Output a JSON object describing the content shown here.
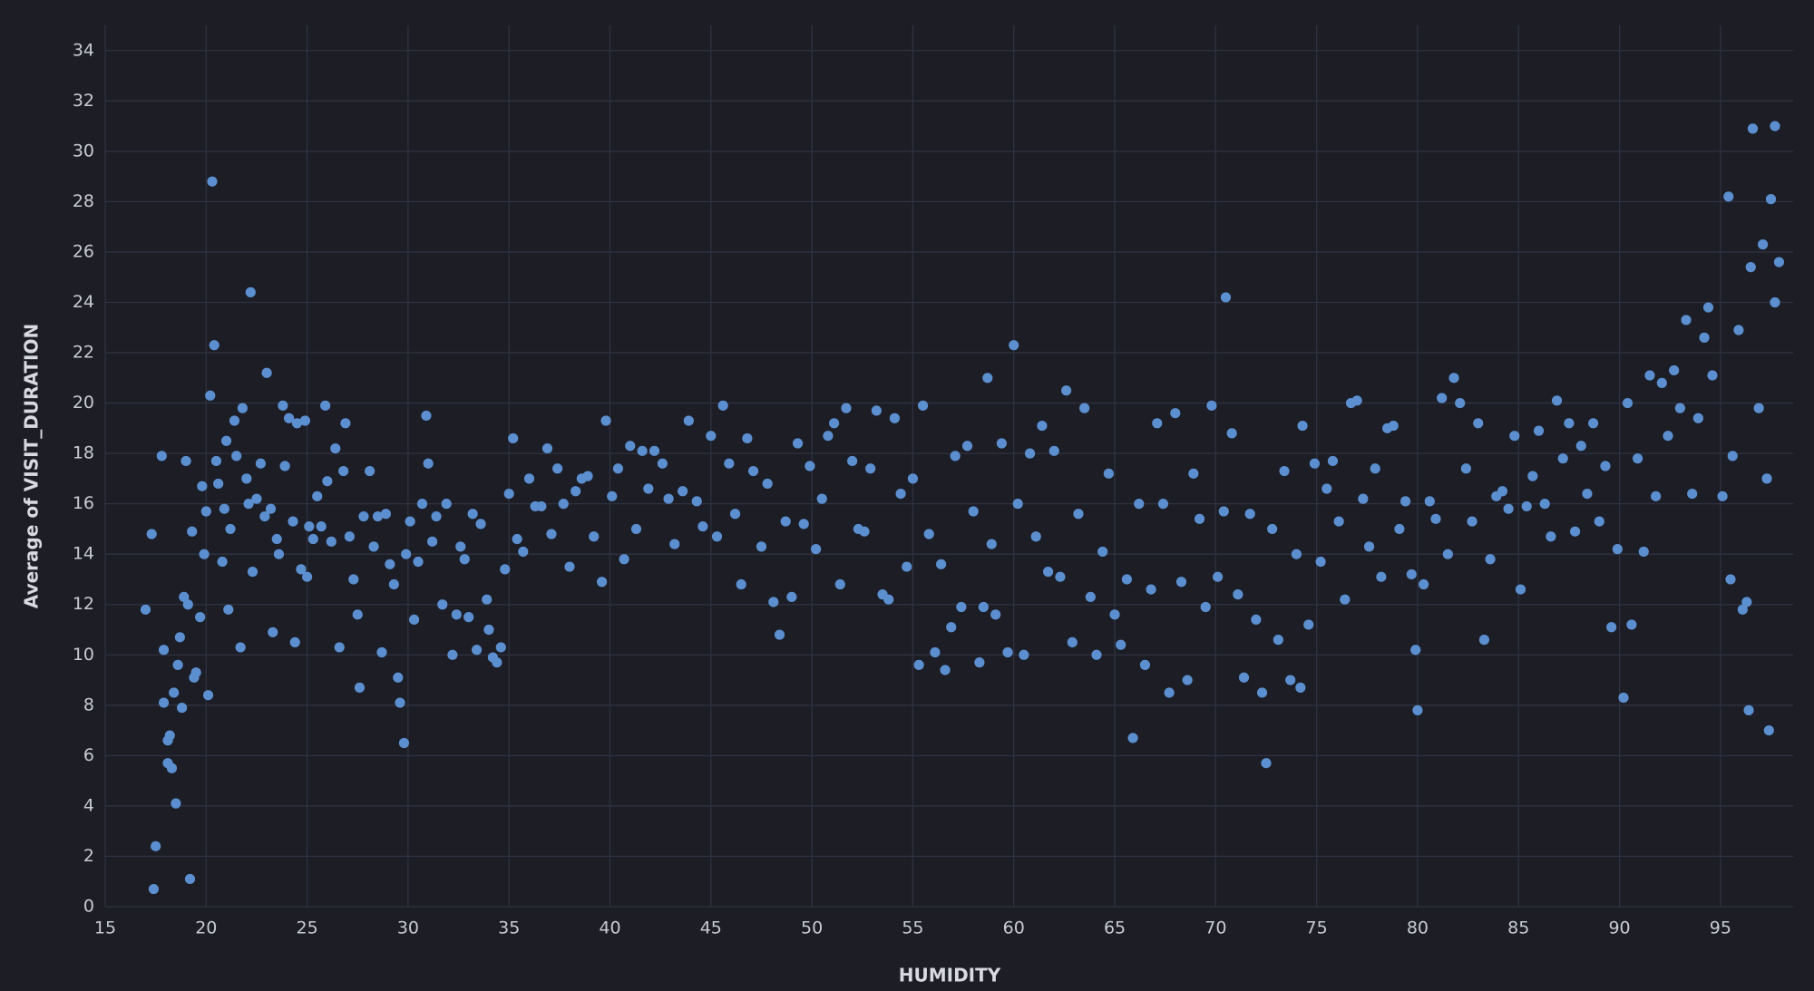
{
  "chart_data": {
    "type": "scatter",
    "x_label": "HUMIDITY",
    "y_label": "Average of VISIT_DURATION",
    "color": "#5b8fd0",
    "grid": true,
    "xlim": [
      15,
      98.6
    ],
    "ylim": [
      0,
      35
    ],
    "xticks": [
      15,
      20,
      25,
      30,
      35,
      40,
      45,
      50,
      55,
      60,
      65,
      70,
      75,
      80,
      85,
      90,
      95
    ],
    "yticks": [
      0,
      2,
      4,
      6,
      8,
      10,
      12,
      14,
      16,
      18,
      20,
      22,
      24,
      26,
      28,
      30,
      32,
      34
    ],
    "x": [
      17,
      17.3,
      17.4,
      17.5,
      17.8,
      17.9,
      17.9,
      18.1,
      18.2,
      18.1,
      18.3,
      18.4,
      18.5,
      18.6,
      18.7,
      18.8,
      18.9,
      19,
      19.1,
      19.2,
      19.3,
      19.4,
      19.5,
      19.7,
      19.8,
      19.9,
      20,
      20.1,
      20.2,
      20.3,
      20.4,
      20.5,
      20.6,
      20.8,
      20.9,
      21,
      21.1,
      21.2,
      21.4,
      21.5,
      21.7,
      21.8,
      22,
      22.1,
      22.2,
      22.3,
      22.5,
      22.7,
      22.9,
      23,
      23.2,
      23.3,
      23.5,
      23.6,
      23.8,
      23.9,
      24.1,
      24.3,
      24.4,
      24.5,
      24.7,
      24.9,
      25,
      25.1,
      25.3,
      25.5,
      25.7,
      25.9,
      26,
      26.2,
      26.4,
      26.6,
      26.8,
      26.9,
      27.1,
      27.3,
      27.5,
      27.6,
      27.8,
      28.1,
      28.3,
      28.5,
      28.7,
      28.9,
      29.1,
      29.3,
      29.5,
      29.6,
      29.8,
      29.9,
      30.1,
      30.3,
      30.5,
      30.7,
      30.9,
      31,
      31.2,
      31.4,
      31.7,
      31.9,
      32.2,
      32.4,
      32.6,
      32.8,
      33,
      33.2,
      33.4,
      33.6,
      33.9,
      34,
      34.2,
      34.4,
      34.6,
      34.8,
      35,
      35.2,
      35.4,
      35.7,
      36,
      36.3,
      36.6,
      36.9,
      37.1,
      37.4,
      37.7,
      38,
      38.3,
      38.6,
      38.9,
      39.2,
      39.6,
      39.8,
      40.1,
      40.4,
      40.7,
      41,
      41.3,
      41.6,
      41.9,
      42.2,
      42.6,
      42.9,
      43.2,
      43.6,
      43.9,
      44.3,
      44.6,
      45,
      45.3,
      45.6,
      45.9,
      46.2,
      46.5,
      46.8,
      47.1,
      47.5,
      47.8,
      48.1,
      48.4,
      48.7,
      49,
      49.3,
      49.6,
      49.9,
      50.2,
      50.5,
      50.8,
      51.1,
      51.4,
      51.7,
      52,
      52.3,
      52.6,
      52.9,
      53.2,
      53.5,
      53.8,
      54.1,
      54.4,
      54.7,
      55,
      55.3,
      55.5,
      55.8,
      56.1,
      56.4,
      56.6,
      56.9,
      57.1,
      57.4,
      57.7,
      58,
      58.3,
      58.5,
      58.7,
      58.9,
      59.1,
      59.4,
      59.7,
      60,
      60.2,
      60.5,
      60.8,
      61.1,
      61.4,
      61.7,
      62,
      62.3,
      62.6,
      62.9,
      63.2,
      63.5,
      63.8,
      64.1,
      64.4,
      64.7,
      65,
      65.3,
      65.6,
      65.9,
      66.2,
      66.5,
      66.8,
      67.1,
      67.4,
      67.7,
      68,
      68.3,
      68.6,
      68.9,
      69.2,
      69.5,
      69.8,
      70.1,
      70.4,
      70.5,
      70.8,
      71.1,
      71.4,
      71.7,
      72,
      72.3,
      72.5,
      72.8,
      73.1,
      73.4,
      73.7,
      74,
      74.2,
      74.3,
      74.6,
      74.9,
      75.2,
      75.5,
      75.8,
      76.1,
      76.4,
      76.7,
      77,
      77.3,
      77.6,
      77.9,
      78.2,
      78.5,
      78.8,
      79.1,
      79.4,
      79.7,
      79.9,
      80,
      80.3,
      80.6,
      80.9,
      81.2,
      81.5,
      81.8,
      82.1,
      82.4,
      82.7,
      83,
      83.3,
      83.6,
      83.9,
      84.2,
      84.5,
      84.8,
      85.1,
      85.4,
      85.7,
      86,
      86.3,
      86.6,
      86.9,
      87.2,
      87.5,
      87.8,
      88.1,
      88.4,
      88.7,
      89,
      89.3,
      89.6,
      89.9,
      90.2,
      90.4,
      90.6,
      90.9,
      91.2,
      91.5,
      91.8,
      92.1,
      92.4,
      92.7,
      93,
      93.3,
      93.6,
      93.9,
      94.2,
      94.4,
      94.6,
      95.1,
      95.4,
      95.5,
      95.6,
      95.9,
      96.1,
      96.3,
      96.4,
      96.5,
      96.6,
      96.9,
      97.1,
      97.3,
      97.4,
      97.5,
      97.7,
      97.7,
      97.9
    ],
    "values": [
      11.8,
      14.8,
      0.7,
      2.4,
      17.9,
      10.2,
      8.1,
      6.6,
      6.8,
      5.7,
      5.5,
      8.5,
      4.1,
      9.6,
      10.7,
      7.9,
      12.3,
      17.7,
      12,
      1.1,
      14.9,
      9.1,
      9.3,
      11.5,
      16.7,
      14,
      15.7,
      8.4,
      20.3,
      28.8,
      22.3,
      17.7,
      16.8,
      13.7,
      15.8,
      18.5,
      11.8,
      15,
      19.3,
      17.9,
      10.3,
      19.8,
      17,
      16,
      24.4,
      13.3,
      16.2,
      17.6,
      15.5,
      21.2,
      15.8,
      10.9,
      14.6,
      14,
      19.9,
      17.5,
      19.4,
      15.3,
      10.5,
      19.2,
      13.4,
      19.3,
      13.1,
      15.1,
      14.6,
      16.3,
      15.1,
      19.9,
      16.9,
      14.5,
      18.2,
      10.3,
      17.3,
      19.2,
      14.7,
      13,
      11.6,
      8.7,
      15.5,
      17.3,
      14.3,
      15.5,
      10.1,
      15.6,
      13.6,
      12.8,
      9.1,
      8.1,
      6.5,
      14,
      15.3,
      11.4,
      13.7,
      16,
      19.5,
      17.6,
      14.5,
      15.5,
      12,
      16,
      10,
      11.6,
      14.3,
      13.8,
      11.5,
      15.6,
      10.2,
      15.2,
      12.2,
      11,
      9.9,
      9.7,
      10.3,
      13.4,
      16.4,
      18.6,
      14.6,
      14.1,
      17,
      15.9,
      15.9,
      18.2,
      14.8,
      17.4,
      16,
      13.5,
      16.5,
      17,
      17.1,
      14.7,
      12.9,
      19.3,
      16.3,
      17.4,
      13.8,
      18.3,
      15,
      18.1,
      16.6,
      18.1,
      17.6,
      16.2,
      14.4,
      16.5,
      19.3,
      16.1,
      15.1,
      18.7,
      14.7,
      19.9,
      17.6,
      15.6,
      12.8,
      18.6,
      17.3,
      14.3,
      16.8,
      12.1,
      10.8,
      15.3,
      12.3,
      18.4,
      15.2,
      17.5,
      14.2,
      16.2,
      18.7,
      19.2,
      12.8,
      19.8,
      17.7,
      15,
      14.9,
      17.4,
      19.7,
      12.4,
      12.2,
      19.4,
      16.4,
      13.5,
      17,
      9.6,
      19.9,
      14.8,
      10.1,
      13.6,
      9.4,
      11.1,
      17.9,
      11.9,
      18.3,
      15.7,
      9.7,
      11.9,
      21,
      14.4,
      11.6,
      18.4,
      10.1,
      22.3,
      16,
      10,
      18,
      14.7,
      19.1,
      13.3,
      18.1,
      13.1,
      20.5,
      10.5,
      15.6,
      19.8,
      12.3,
      10,
      14.1,
      17.2,
      11.6,
      10.4,
      13,
      6.7,
      16,
      9.6,
      12.6,
      19.2,
      16,
      8.5,
      19.6,
      12.9,
      9,
      17.2,
      15.4,
      11.9,
      19.9,
      13.1,
      15.7,
      24.2,
      18.8,
      12.4,
      9.1,
      15.6,
      11.4,
      8.5,
      5.7,
      15,
      10.6,
      17.3,
      9,
      14,
      8.7,
      19.1,
      11.2,
      17.6,
      13.7,
      16.6,
      17.7,
      15.3,
      12.2,
      20,
      20.1,
      16.2,
      14.3,
      17.4,
      13.1,
      19,
      19.1,
      15,
      16.1,
      13.2,
      10.2,
      7.8,
      12.8,
      16.1,
      15.4,
      20.2,
      14,
      21,
      20,
      17.4,
      15.3,
      19.2,
      10.6,
      13.8,
      16.3,
      16.5,
      15.8,
      18.7,
      12.6,
      15.9,
      17.1,
      18.9,
      16,
      14.7,
      20.1,
      17.8,
      19.2,
      14.9,
      18.3,
      16.4,
      19.2,
      15.3,
      17.5,
      11.1,
      14.2,
      8.3,
      20,
      11.2,
      17.8,
      14.1,
      21.1,
      16.3,
      20.8,
      18.7,
      21.3,
      19.8,
      23.3,
      16.4,
      19.4,
      22.6,
      23.8,
      21.1,
      16.3,
      28.2,
      13,
      17.9,
      22.9,
      11.8,
      12.1,
      7.8,
      25.4,
      30.9,
      19.8,
      26.3,
      17,
      7,
      28.1,
      31,
      24,
      25.6
    ]
  }
}
